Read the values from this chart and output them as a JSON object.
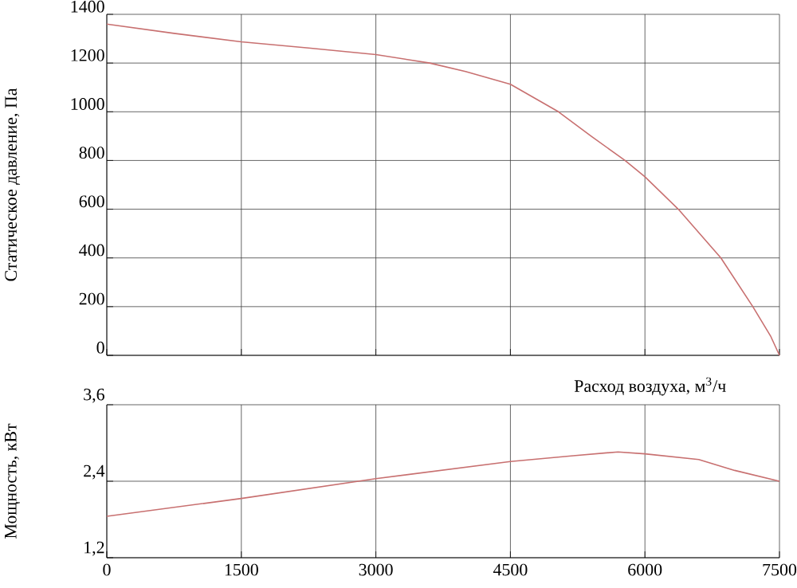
{
  "chart_data": [
    {
      "type": "line",
      "ylabel": "Статическое давление, Па",
      "xlim": [
        0,
        7500
      ],
      "ylim": [
        0,
        1400
      ],
      "xticks": [
        0,
        1500,
        3000,
        4500,
        6000,
        7500
      ],
      "yticks": [
        0,
        200,
        400,
        600,
        800,
        1000,
        1200,
        1400
      ],
      "grid": true,
      "tick_labels": "y",
      "series": [
        {
          "color": "#c87070",
          "x": [
            0,
            750,
            1500,
            2250,
            3000,
            3600,
            4000,
            4500,
            5036,
            5400,
            5778,
            6000,
            6372,
            6847,
            7203,
            7400,
            7500
          ],
          "values": [
            1360,
            1322,
            1287,
            1262,
            1235,
            1200,
            1165,
            1113,
            1000,
            900,
            800,
            733,
            600,
            400,
            200,
            80,
            0
          ]
        }
      ]
    },
    {
      "type": "line",
      "xlabel": "Расход воздуха, м$^{3}$/ч",
      "ylabel": "Мощность, кВт",
      "xlim": [
        0,
        7500
      ],
      "ylim": [
        1.2,
        3.6
      ],
      "xticks": [
        0,
        1500,
        3000,
        4500,
        6000,
        7500
      ],
      "yticks": [
        {
          "value": 1.2,
          "label": "1,2"
        },
        {
          "value": 2.4,
          "label": "2,4"
        },
        {
          "value": 3.6,
          "label": "3,6"
        }
      ],
      "grid": true,
      "series": [
        {
          "color": "#c87070",
          "x": [
            0,
            1500,
            3000,
            4500,
            5200,
            5700,
            6000,
            6600,
            7000,
            7500
          ],
          "values": [
            1.85,
            2.13,
            2.44,
            2.71,
            2.8,
            2.86,
            2.83,
            2.74,
            2.57,
            2.4
          ]
        }
      ]
    }
  ]
}
